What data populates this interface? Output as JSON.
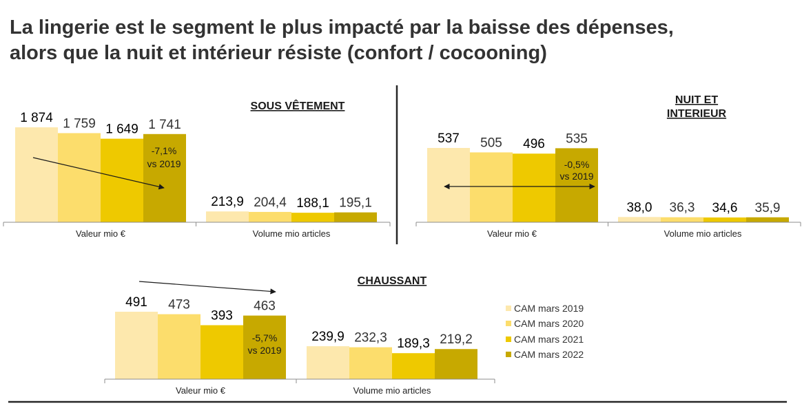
{
  "title": {
    "line1": "La lingerie est le segment le plus impacté par la baisse des dépenses,",
    "line2": "alors que la nuit et intérieur résiste (confort / cocooning)"
  },
  "colors": {
    "series": [
      "#FDE8AD",
      "#FCDD6C",
      "#EEC900",
      "#C7A900"
    ],
    "text": "#1a1a1a",
    "axis": "#8c8c8c",
    "divider": "#262626"
  },
  "chart_data": [
    {
      "type": "bar",
      "title": "SOUS VÊTEMENT",
      "categories": [
        "Valeur mio €",
        "Volume mio articles"
      ],
      "series": [
        {
          "name": "CAM mars 2019",
          "values": [
            1874,
            213.9
          ],
          "labels": [
            "1 874",
            "213,9"
          ]
        },
        {
          "name": "CAM mars 2020",
          "values": [
            1759,
            204.4
          ],
          "labels": [
            "1 759",
            "204,4"
          ]
        },
        {
          "name": "CAM mars 2021",
          "values": [
            1649,
            188.1
          ],
          "labels": [
            "1 649",
            "188,1"
          ]
        },
        {
          "name": "CAM mars 2022",
          "values": [
            1741,
            195.1
          ],
          "labels": [
            "1 741",
            "195,1"
          ]
        }
      ],
      "ylim": [
        0,
        1874
      ],
      "annotation": {
        "line1": "-7,1%",
        "line2": "vs 2019"
      }
    },
    {
      "type": "bar",
      "title": "NUIT ET INTERIEUR",
      "title_line1": "NUIT ET",
      "title_line2": "INTERIEUR",
      "categories": [
        "Valeur mio €",
        "Volume mio articles"
      ],
      "series": [
        {
          "name": "CAM mars 2019",
          "values": [
            537,
            38.0
          ],
          "labels": [
            "537",
            "38,0"
          ]
        },
        {
          "name": "CAM mars 2020",
          "values": [
            505,
            36.3
          ],
          "labels": [
            "505",
            "36,3"
          ]
        },
        {
          "name": "CAM mars 2021",
          "values": [
            496,
            34.6
          ],
          "labels": [
            "496",
            "34,6"
          ]
        },
        {
          "name": "CAM mars 2022",
          "values": [
            535,
            35.9
          ],
          "labels": [
            "535",
            "35,9"
          ]
        }
      ],
      "ylim": [
        0,
        537
      ],
      "annotation": {
        "line1": "-0,5%",
        "line2": "vs 2019"
      }
    },
    {
      "type": "bar",
      "title": "CHAUSSANT",
      "categories": [
        "Valeur mio €",
        "Volume mio articles"
      ],
      "series": [
        {
          "name": "CAM mars 2019",
          "values": [
            491,
            239.9
          ],
          "labels": [
            "491",
            "239,9"
          ]
        },
        {
          "name": "CAM mars 2020",
          "values": [
            473,
            232.3
          ],
          "labels": [
            "473",
            "232,3"
          ]
        },
        {
          "name": "CAM mars 2021",
          "values": [
            393,
            189.3
          ],
          "labels": [
            "393",
            "189,3"
          ]
        },
        {
          "name": "CAM mars 2022",
          "values": [
            463,
            219.2
          ],
          "labels": [
            "463",
            "219,2"
          ]
        }
      ],
      "ylim": [
        0,
        491
      ],
      "annotation": {
        "line1": "-5,7%",
        "line2": "vs 2019"
      }
    }
  ],
  "legend": [
    {
      "label": "CAM mars 2019"
    },
    {
      "label": "CAM mars 2020"
    },
    {
      "label": "CAM mars 2021"
    },
    {
      "label": "CAM mars 2022"
    }
  ]
}
